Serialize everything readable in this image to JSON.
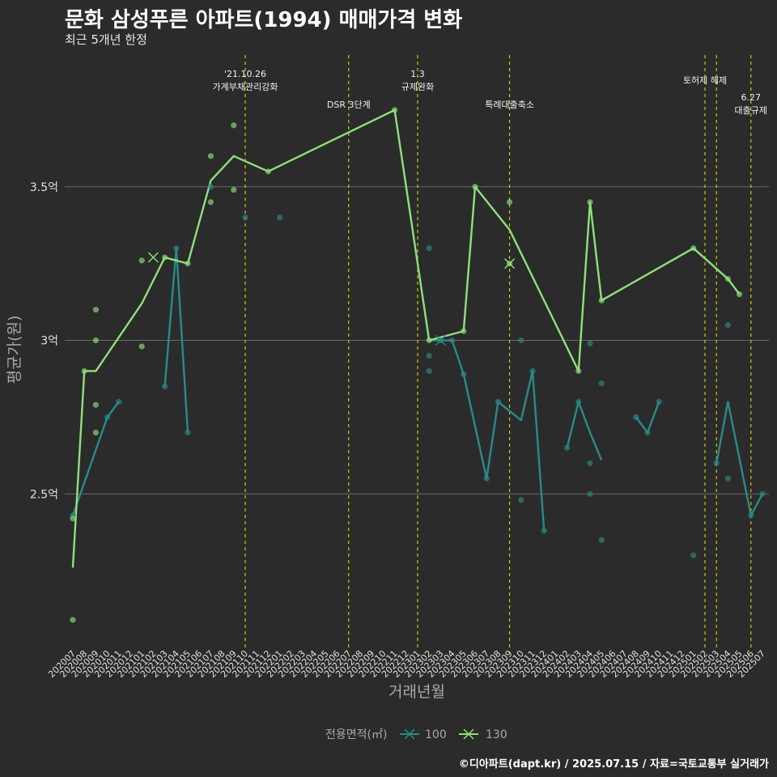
{
  "chart_data": {
    "type": "line",
    "title": "문화 삼성푸른 아파트(1994) 매매가격 변화",
    "subtitle": "최근 5개년 한정",
    "xlabel": "거래년월",
    "ylabel": "평균가(원)",
    "caption": "©디아파트(dapt.kr) / 2025.07.15 / 자료=국토교통부 실거래가",
    "legend": {
      "title": "전용면적(㎡)",
      "position": "bottom",
      "entries": [
        "100",
        "130"
      ]
    },
    "grid": true,
    "ylim": [
      2.0,
      3.95
    ],
    "yticks": [
      {
        "value": 2.5,
        "label": "2.5억"
      },
      {
        "value": 3.0,
        "label": "3억"
      },
      {
        "value": 3.5,
        "label": "3.5억"
      }
    ],
    "x": [
      "202007",
      "202008",
      "202009",
      "202010",
      "202011",
      "202012",
      "202101",
      "202102",
      "202103",
      "202104",
      "202105",
      "202106",
      "202107",
      "202108",
      "202109",
      "202110",
      "202111",
      "202112",
      "202201",
      "202202",
      "202203",
      "202204",
      "202205",
      "202206",
      "202207",
      "202208",
      "202209",
      "202210",
      "202211",
      "202212",
      "202301",
      "202302",
      "202303",
      "202304",
      "202305",
      "202306",
      "202307",
      "202308",
      "202309",
      "202310",
      "202311",
      "202312",
      "202401",
      "202402",
      "202403",
      "202404",
      "202405",
      "202406",
      "202407",
      "202408",
      "202409",
      "202410",
      "202411",
      "202412",
      "202501",
      "202502",
      "202503",
      "202504",
      "202505",
      "202506",
      "202507"
    ],
    "series": [
      {
        "name": "100",
        "color": "#2a8a88",
        "line_segments": [
          [
            [
              "202007",
              2.43
            ],
            [
              "202010",
              2.75
            ],
            [
              "202011",
              2.8
            ]
          ],
          [
            [
              "202103",
              2.85
            ],
            [
              "202104",
              3.3
            ],
            [
              "202105",
              2.7
            ]
          ],
          [
            [
              "202302",
              3.0
            ],
            [
              "202303",
              3.0
            ],
            [
              "202304",
              3.0
            ],
            [
              "202305",
              2.89
            ],
            [
              "202307",
              2.55
            ],
            [
              "202308",
              2.8
            ],
            [
              "202310",
              2.74
            ],
            [
              "202311",
              2.9
            ],
            [
              "202312",
              2.38
            ]
          ],
          [
            [
              "202402",
              2.65
            ],
            [
              "202403",
              2.8
            ],
            [
              "202404",
              2.7
            ],
            [
              "202405",
              2.61
            ]
          ],
          [
            [
              "202408",
              2.75
            ],
            [
              "202409",
              2.7
            ],
            [
              "202410",
              2.8
            ]
          ],
          [
            [
              "202503",
              2.6
            ],
            [
              "202504",
              2.8
            ],
            [
              "202506",
              2.43
            ],
            [
              "202507",
              2.5
            ]
          ]
        ],
        "points": [
          [
            "202007",
            2.43
          ],
          [
            "202010",
            2.75
          ],
          [
            "202011",
            2.8
          ],
          [
            "202103",
            2.85
          ],
          [
            "202104",
            3.3
          ],
          [
            "202105",
            2.7
          ],
          [
            "202107",
            3.5
          ],
          [
            "202110",
            3.4
          ],
          [
            "202113",
            3.4
          ],
          [
            "202302",
            3.3
          ],
          [
            "202302",
            2.95
          ],
          [
            "202302",
            2.9
          ],
          [
            "202303",
            3.0
          ],
          [
            "202304",
            3.0
          ],
          [
            "202305",
            2.89
          ],
          [
            "202307",
            2.55
          ],
          [
            "202308",
            2.8
          ],
          [
            "202310",
            3.0
          ],
          [
            "202310",
            2.48
          ],
          [
            "202311",
            2.9
          ],
          [
            "202312",
            2.38
          ],
          [
            "202402",
            2.65
          ],
          [
            "202403",
            2.8
          ],
          [
            "202404",
            2.99
          ],
          [
            "202404",
            2.6
          ],
          [
            "202404",
            2.5
          ],
          [
            "202405",
            2.86
          ],
          [
            "202405",
            2.35
          ],
          [
            "202408",
            2.75
          ],
          [
            "202409",
            2.7
          ],
          [
            "202410",
            2.8
          ],
          [
            "202501",
            2.3
          ],
          [
            "202503",
            2.6
          ],
          [
            "202504",
            3.05
          ],
          [
            "202504",
            2.55
          ],
          [
            "202506",
            2.43
          ],
          [
            "202507",
            2.5
          ]
        ],
        "x_markers": [
          [
            "202303",
            3.0
          ]
        ]
      },
      {
        "name": "130",
        "color": "#8ee07a",
        "line_segments": [
          [
            [
              "202007",
              2.26
            ],
            [
              "202008",
              2.9
            ],
            [
              "202009",
              2.9
            ],
            [
              "202101",
              3.12
            ],
            [
              "202103",
              3.27
            ],
            [
              "202105",
              3.25
            ],
            [
              "202107",
              3.52
            ],
            [
              "202109",
              3.6
            ],
            [
              "202112",
              3.55
            ],
            [
              "202211",
              3.75
            ],
            [
              "202302",
              3.0
            ],
            [
              "202305",
              3.03
            ],
            [
              "202306",
              3.5
            ],
            [
              "202309",
              3.36
            ],
            [
              "202403",
              2.9
            ],
            [
              "202404",
              3.45
            ],
            [
              "202405",
              3.13
            ],
            [
              "202501",
              3.3
            ],
            [
              "202504",
              3.2
            ],
            [
              "202505",
              3.15
            ]
          ]
        ],
        "points": [
          [
            "202007",
            2.42
          ],
          [
            "202007",
            2.09
          ],
          [
            "202008",
            2.9
          ],
          [
            "202009",
            3.1
          ],
          [
            "202009",
            3.0
          ],
          [
            "202009",
            2.79
          ],
          [
            "202009",
            2.7
          ],
          [
            "202101",
            3.26
          ],
          [
            "202101",
            2.98
          ],
          [
            "202103",
            3.27
          ],
          [
            "202105",
            3.25
          ],
          [
            "202107",
            3.6
          ],
          [
            "202107",
            3.45
          ],
          [
            "202109",
            3.7
          ],
          [
            "202109",
            3.49
          ],
          [
            "202112",
            3.55
          ],
          [
            "202211",
            3.75
          ],
          [
            "202302",
            3.0
          ],
          [
            "202305",
            3.03
          ],
          [
            "202306",
            3.5
          ],
          [
            "202309",
            3.45
          ],
          [
            "202309",
            3.25
          ],
          [
            "202403",
            2.9
          ],
          [
            "202404",
            3.45
          ],
          [
            "202405",
            3.13
          ],
          [
            "202501",
            3.3
          ],
          [
            "202504",
            3.2
          ],
          [
            "202505",
            3.15
          ]
        ],
        "x_markers": [
          [
            "202102",
            3.27
          ],
          [
            "202309",
            3.25
          ]
        ]
      }
    ],
    "annotations": [
      {
        "x": "202110",
        "lines": [
          "'21.10.26",
          "가계부채관리강화"
        ],
        "color": "#e8e800"
      },
      {
        "x": "202207",
        "lines": [
          "DSR 3단계"
        ],
        "color": "#e8e800"
      },
      {
        "x": "202301",
        "lines": [
          "1.3",
          "규제완화"
        ],
        "color": "#e8e800"
      },
      {
        "x": "202309",
        "lines": [
          "특례대출축소"
        ],
        "color": "#e8e800"
      },
      {
        "x": "202502",
        "lines": [
          "토허제 해제"
        ],
        "color": "#e8e800"
      },
      {
        "x": "202503",
        "lines": [],
        "color": "#e8e800"
      },
      {
        "x": "202506",
        "lines": [
          "6.27",
          "대출규제"
        ],
        "color": "#e8e800"
      }
    ]
  }
}
